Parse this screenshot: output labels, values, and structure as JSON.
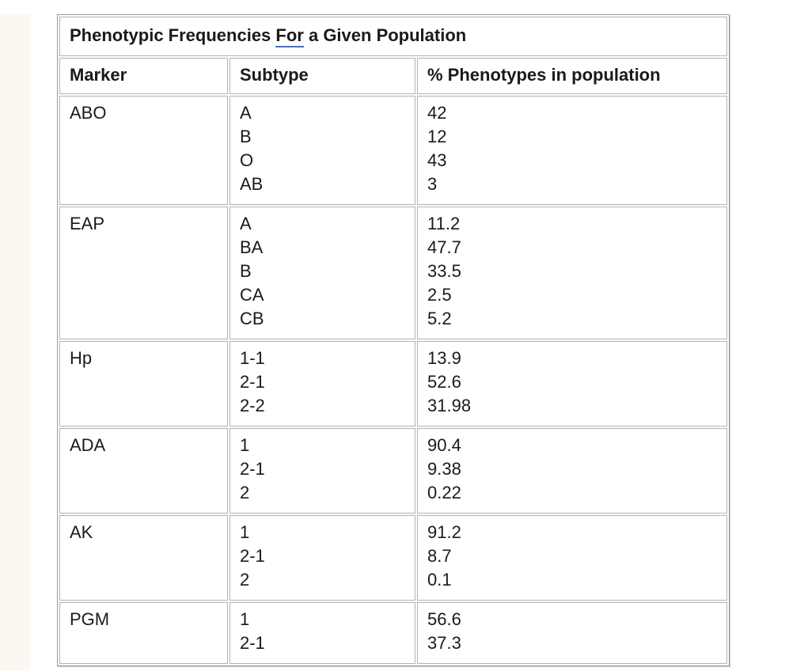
{
  "colors": {
    "page_background": "#ffffff",
    "left_strip": "#fdf7f1",
    "table_frame_border": "#9a9a9a",
    "cell_border": "#b2b2b2",
    "text": "#1a1a1a",
    "grammar_underline": "#4070d8"
  },
  "table": {
    "title": {
      "prefix": "Phenotypic Frequencies ",
      "underlined_word": "For",
      "suffix": " a Given Population"
    },
    "columns": [
      "Marker",
      "Subtype",
      "% Phenotypes in population"
    ],
    "rows": [
      {
        "marker": "ABO",
        "subtypes": [
          "A",
          "B",
          "O",
          "AB"
        ],
        "values": [
          "42",
          "12",
          "43",
          "3"
        ]
      },
      {
        "marker": "EAP",
        "subtypes": [
          "A",
          "BA",
          "B",
          "CA",
          "CB"
        ],
        "values": [
          "11.2",
          "47.7",
          "33.5",
          "2.5",
          "5.2"
        ]
      },
      {
        "marker": "Hp",
        "subtypes": [
          "1-1",
          "2-1",
          "2-2"
        ],
        "values": [
          "13.9",
          "52.6",
          "31.98"
        ]
      },
      {
        "marker": "ADA",
        "subtypes": [
          "1",
          "2-1",
          "2"
        ],
        "values": [
          "90.4",
          "9.38",
          "0.22"
        ]
      },
      {
        "marker": "AK",
        "subtypes": [
          "1",
          "2-1",
          "2"
        ],
        "values": [
          "91.2",
          "8.7",
          "0.1"
        ]
      },
      {
        "marker": "PGM",
        "subtypes": [
          "1",
          "2-1"
        ],
        "values": [
          "56.6",
          "37.3"
        ]
      }
    ]
  }
}
